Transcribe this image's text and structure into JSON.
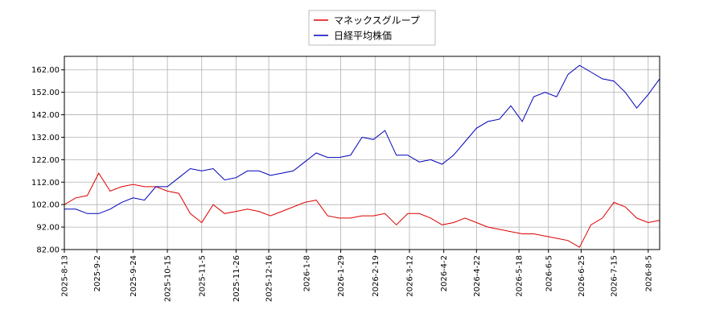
{
  "chart_data": {
    "type": "line",
    "x": [
      "2025-8-13",
      "2025-8-20",
      "2025-8-27",
      "2025-9-3",
      "2025-9-10",
      "2025-9-17",
      "2025-9-24",
      "2025-10-1",
      "2025-10-8",
      "2025-10-15",
      "2025-10-22",
      "2025-10-29",
      "2025-11-5",
      "2025-11-12",
      "2025-11-19",
      "2025-11-26",
      "2025-12-3",
      "2025-12-10",
      "2025-12-17",
      "2025-12-24",
      "2025-12-31",
      "2026-1-7",
      "2026-1-14",
      "2026-1-21",
      "2026-1-28",
      "2026-2-4",
      "2026-2-11",
      "2026-2-18",
      "2026-2-25",
      "2026-3-4",
      "2026-3-11",
      "2026-3-18",
      "2026-3-25",
      "2026-4-1",
      "2026-4-8",
      "2026-4-15",
      "2026-4-22",
      "2026-4-29",
      "2026-5-6",
      "2026-5-13",
      "2026-5-20",
      "2026-5-27",
      "2026-6-3",
      "2026-6-10",
      "2026-6-17",
      "2026-6-24",
      "2026-7-1",
      "2026-7-8",
      "2026-7-15",
      "2026-7-22",
      "2026-7-29",
      "2026-8-5",
      "2026-8-12"
    ],
    "series": [
      {
        "name": "マネックスグループ",
        "color": "#dd0000",
        "values": [
          102,
          105,
          106,
          116,
          108,
          110,
          111,
          110,
          110,
          108,
          107,
          98,
          94,
          102,
          98,
          99,
          100,
          99,
          97,
          99,
          101,
          103,
          104,
          97,
          96,
          96,
          97,
          97,
          98,
          93,
          98,
          98,
          96,
          93,
          94,
          96,
          94,
          92,
          91,
          90,
          89,
          89,
          88,
          87,
          86,
          83,
          93,
          96,
          103,
          101,
          96,
          94,
          95
        ]
      },
      {
        "name": "日経平均株価",
        "color": "#0000bb",
        "values": [
          100,
          100,
          98,
          98,
          100,
          103,
          105,
          104,
          110,
          110,
          114,
          118,
          117,
          118,
          113,
          114,
          117,
          117,
          115,
          116,
          117,
          121,
          125,
          123,
          123,
          124,
          132,
          131,
          135,
          124,
          124,
          121,
          122,
          120,
          124,
          130,
          136,
          139,
          140,
          146,
          139,
          150,
          152,
          150,
          160,
          164,
          161,
          158,
          157,
          152,
          145,
          151,
          158
        ]
      }
    ],
    "xlim": [
      "2025-8-13",
      "2026-8-12"
    ],
    "xticks": [
      "2025-8-13",
      "2025-9-2",
      "2025-9-24",
      "2025-10-15",
      "2025-11-5",
      "2025-11-26",
      "2025-12-16",
      "2026-1-8",
      "2026-1-29",
      "2026-2-19",
      "2026-3-12",
      "2026-4-2",
      "2026-4-22",
      "2026-5-18",
      "2026-6-5",
      "2026-6-25",
      "2026-7-15",
      "2026-8-5"
    ],
    "ylim": [
      82,
      168
    ],
    "yticks": [
      {
        "value": 82,
        "label": "82.00"
      },
      {
        "value": 92,
        "label": "92.00"
      },
      {
        "value": 102,
        "label": "102.00"
      },
      {
        "value": 112,
        "label": "112.00"
      },
      {
        "value": 122,
        "label": "122.00"
      },
      {
        "value": 132,
        "label": "132.00"
      },
      {
        "value": 142,
        "label": "142.00"
      },
      {
        "value": 152,
        "label": "152.00"
      },
      {
        "value": 162,
        "label": "162.00"
      }
    ],
    "grid": true
  }
}
